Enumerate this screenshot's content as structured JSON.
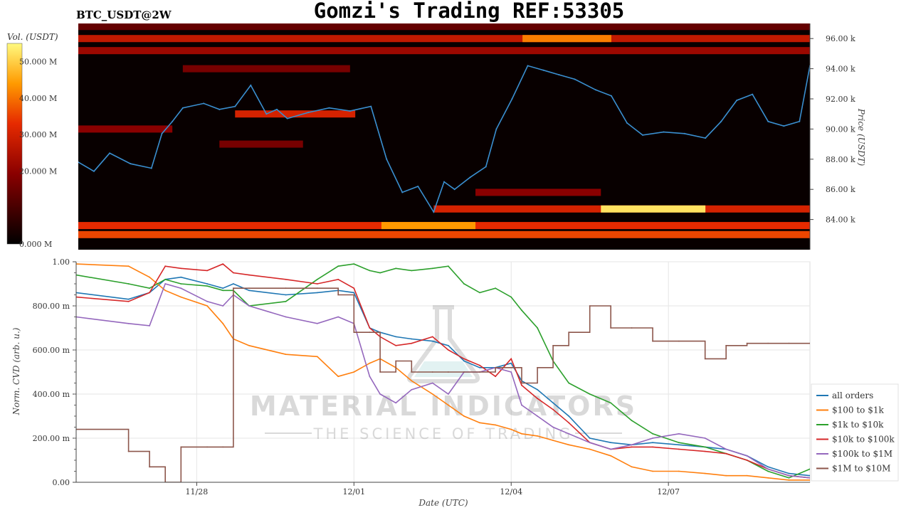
{
  "header": {
    "symbol": "BTC_USDT@2W",
    "title": "Gomzi's Trading REF:53305"
  },
  "watermark": {
    "brand": "MATERIAL INDICATORS",
    "tagline": "THE SCIENCE OF TRADING"
  },
  "colors": {
    "all_orders": "#1f77b4",
    "100_to_1k": "#ff7f0e",
    "1k_to_10k": "#2ca02c",
    "10k_to_100k": "#d62728",
    "100k_to_1m": "#9467bd",
    "1m_to_10m": "#8c564b",
    "price_line": "#3a8fd0",
    "heatmap_background": "#080000"
  },
  "chart_data": [
    {
      "type": "heatmap",
      "title": "BTC_USDT@2W",
      "ylabel": "Price (USDT)",
      "colorbar_label": "Vol. (USDT)",
      "colorbar_ticks": [
        "0.000 M",
        "20.000 M",
        "30.000 M",
        "40.000 M",
        "50.000 M"
      ],
      "colorbar_range": [
        0,
        55
      ],
      "price_ticks": [
        "84.00 k",
        "86.00 k",
        "88.00 k",
        "90.00 k",
        "92.00 k",
        "94.00 k",
        "96.00 k"
      ],
      "ylim": [
        82000,
        97000
      ],
      "xlim": [
        0,
        14
      ],
      "price_series": {
        "x": [
          0,
          0.3,
          0.6,
          1.0,
          1.4,
          1.6,
          1.8,
          2.0,
          2.4,
          2.7,
          3.0,
          3.3,
          3.6,
          3.8,
          4.0,
          4.4,
          4.8,
          5.2,
          5.6,
          5.9,
          6.2,
          6.5,
          6.8,
          7.0,
          7.2,
          7.5,
          7.8,
          8.0,
          8.3,
          8.6,
          8.9,
          9.2,
          9.5,
          9.9,
          10.2,
          10.5,
          10.8,
          11.2,
          11.6,
          12.0,
          12.3,
          12.6,
          12.9,
          13.2,
          13.5,
          13.8,
          14.0
        ],
        "y": [
          87800,
          87200,
          88400,
          87700,
          87400,
          89700,
          90500,
          91400,
          91700,
          91300,
          91500,
          92900,
          91000,
          91300,
          90700,
          91100,
          91400,
          91200,
          91500,
          88000,
          85800,
          86200,
          84500,
          86500,
          86000,
          86800,
          87500,
          90000,
          92000,
          94200,
          93900,
          93600,
          93300,
          92600,
          92200,
          90400,
          89600,
          89800,
          89700,
          89400,
          90500,
          91900,
          92300,
          90500,
          90200,
          90500,
          94200
        ]
      },
      "heat_bands": [
        {
          "price": 83000,
          "x": [
            0,
            14
          ],
          "intensity": 0.65
        },
        {
          "price": 83600,
          "x": [
            0,
            14
          ],
          "intensity": 0.6
        },
        {
          "price": 83600,
          "x": [
            5.8,
            7.6
          ],
          "intensity": 0.8
        },
        {
          "price": 84700,
          "x": [
            6.8,
            14
          ],
          "intensity": 0.55
        },
        {
          "price": 84700,
          "x": [
            10,
            12
          ],
          "intensity": 0.95
        },
        {
          "price": 85800,
          "x": [
            7.6,
            10
          ],
          "intensity": 0.35
        },
        {
          "price": 89000,
          "x": [
            2.7,
            4.3
          ],
          "intensity": 0.3
        },
        {
          "price": 90000,
          "x": [
            0,
            1.8
          ],
          "intensity": 0.35
        },
        {
          "price": 91000,
          "x": [
            3.0,
            5.3
          ],
          "intensity": 0.55
        },
        {
          "price": 94000,
          "x": [
            2.0,
            5.2
          ],
          "intensity": 0.3
        },
        {
          "price": 95200,
          "x": [
            0,
            14
          ],
          "intensity": 0.4
        },
        {
          "price": 96000,
          "x": [
            0,
            14
          ],
          "intensity": 0.5
        },
        {
          "price": 96000,
          "x": [
            8.5,
            10.2
          ],
          "intensity": 0.75
        },
        {
          "price": 96800,
          "x": [
            0,
            14
          ],
          "intensity": 0.25
        }
      ]
    },
    {
      "type": "line",
      "xlabel": "Date (UTC)",
      "ylabel": "Norm. CVD (arb. u.)",
      "ylim": [
        0,
        1
      ],
      "xlim": [
        0,
        14
      ],
      "x_ticks": [
        {
          "x": 2.3,
          "label": "11/28"
        },
        {
          "x": 5.3,
          "label": "12/01"
        },
        {
          "x": 8.3,
          "label": "12/04"
        },
        {
          "x": 11.3,
          "label": "12/07"
        }
      ],
      "y_ticks": [
        {
          "v": 0,
          "label": "0.00"
        },
        {
          "v": 0.2,
          "label": "200.00 m"
        },
        {
          "v": 0.4,
          "label": "400.00 m"
        },
        {
          "v": 0.6,
          "label": "600.00 m"
        },
        {
          "v": 0.8,
          "label": "800.00 m"
        },
        {
          "v": 1.0,
          "label": "1.00"
        }
      ],
      "legend": "right",
      "grid": true,
      "x": [
        0,
        1,
        1.4,
        1.7,
        2.0,
        2.5,
        2.8,
        3.0,
        3.3,
        4.0,
        4.6,
        5.0,
        5.3,
        5.6,
        5.8,
        6.1,
        6.4,
        6.8,
        7.1,
        7.4,
        7.7,
        8.0,
        8.3,
        8.5,
        8.8,
        9.1,
        9.4,
        9.8,
        10.2,
        10.6,
        11.0,
        11.5,
        12.0,
        12.4,
        12.8,
        13.2,
        13.6,
        14.0
      ],
      "series": [
        {
          "name": "all orders",
          "key": "all_orders",
          "values": [
            0.86,
            0.83,
            0.86,
            0.92,
            0.93,
            0.9,
            0.88,
            0.9,
            0.87,
            0.85,
            0.86,
            0.87,
            0.86,
            0.7,
            0.68,
            0.66,
            0.65,
            0.64,
            0.62,
            0.55,
            0.52,
            0.52,
            0.54,
            0.46,
            0.42,
            0.36,
            0.3,
            0.2,
            0.18,
            0.17,
            0.18,
            0.17,
            0.16,
            0.15,
            0.12,
            0.07,
            0.04,
            0.03
          ]
        },
        {
          "name": "$100 to $1k",
          "key": "100_to_1k",
          "values": [
            0.99,
            0.98,
            0.93,
            0.87,
            0.84,
            0.8,
            0.72,
            0.65,
            0.62,
            0.58,
            0.57,
            0.48,
            0.5,
            0.54,
            0.56,
            0.52,
            0.46,
            0.4,
            0.35,
            0.3,
            0.27,
            0.26,
            0.24,
            0.22,
            0.21,
            0.19,
            0.17,
            0.15,
            0.12,
            0.07,
            0.05,
            0.05,
            0.04,
            0.03,
            0.03,
            0.02,
            0.01,
            0.01
          ]
        },
        {
          "name": "$1k to $10k",
          "key": "1k_to_10k",
          "values": [
            0.94,
            0.9,
            0.88,
            0.92,
            0.9,
            0.89,
            0.87,
            0.87,
            0.8,
            0.82,
            0.92,
            0.98,
            0.99,
            0.96,
            0.95,
            0.97,
            0.96,
            0.97,
            0.98,
            0.9,
            0.86,
            0.88,
            0.84,
            0.78,
            0.7,
            0.55,
            0.45,
            0.4,
            0.36,
            0.28,
            0.22,
            0.18,
            0.16,
            0.13,
            0.1,
            0.05,
            0.02,
            0.06
          ]
        },
        {
          "name": "$10k to $100k",
          "key": "10k_to_100k",
          "values": [
            0.84,
            0.82,
            0.86,
            0.98,
            0.97,
            0.96,
            0.99,
            0.95,
            0.94,
            0.92,
            0.9,
            0.92,
            0.88,
            0.7,
            0.66,
            0.62,
            0.63,
            0.66,
            0.6,
            0.56,
            0.53,
            0.48,
            0.56,
            0.44,
            0.38,
            0.33,
            0.27,
            0.18,
            0.15,
            0.16,
            0.16,
            0.15,
            0.14,
            0.13,
            0.1,
            0.06,
            0.03,
            0.02
          ]
        },
        {
          "name": "$100k to $1M",
          "key": "100k_to_1m",
          "values": [
            0.75,
            0.72,
            0.71,
            0.9,
            0.88,
            0.82,
            0.8,
            0.85,
            0.8,
            0.75,
            0.72,
            0.75,
            0.72,
            0.48,
            0.4,
            0.36,
            0.42,
            0.45,
            0.4,
            0.5,
            0.5,
            0.52,
            0.5,
            0.35,
            0.3,
            0.25,
            0.22,
            0.18,
            0.15,
            0.17,
            0.2,
            0.22,
            0.2,
            0.15,
            0.12,
            0.06,
            0.03,
            0.02
          ]
        },
        {
          "name": "$1M to $10M",
          "key": "1m_to_10m",
          "values": [
            0.24,
            0.14,
            0.07,
            0.0,
            0.16,
            0.16,
            0.16,
            0.88,
            0.88,
            0.88,
            0.88,
            0.85,
            0.68,
            0.68,
            0.5,
            0.55,
            0.5,
            0.5,
            0.5,
            0.5,
            0.5,
            0.52,
            0.52,
            0.45,
            0.52,
            0.62,
            0.68,
            0.8,
            0.7,
            0.7,
            0.64,
            0.64,
            0.56,
            0.62,
            0.63,
            0.63,
            0.63,
            0.63
          ]
        }
      ]
    }
  ]
}
